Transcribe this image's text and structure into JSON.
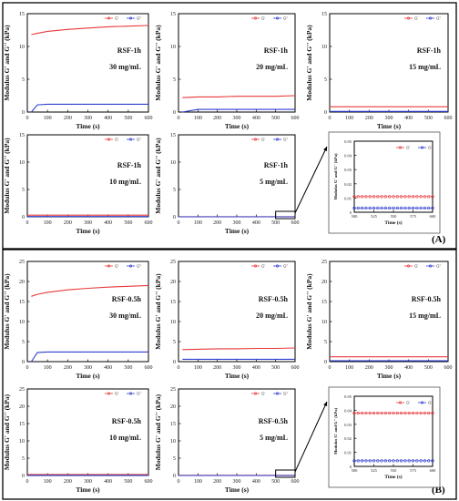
{
  "panel_labels": [
    "(A)",
    "(B)"
  ],
  "legend_labels": [
    "G'",
    "G''"
  ],
  "colors": {
    "g_prime": "#e8393a",
    "g_double_prime": "#2f3fcf",
    "frame": "#000000"
  },
  "chart_data": [
    {
      "type": "line",
      "group": "A",
      "sample": "RSF-1h",
      "concentration": "30 mg/mL",
      "xlabel": "Time (s)",
      "ylabel": "Modulus G' and G'' (kPa)",
      "xlim": [
        0,
        600
      ],
      "ylim": [
        0,
        15
      ],
      "xticks": [
        0,
        100,
        200,
        300,
        400,
        500,
        600
      ],
      "yticks": [
        0,
        5,
        10,
        15
      ],
      "x": [
        20,
        50,
        100,
        200,
        300,
        400,
        500,
        600
      ],
      "series": [
        {
          "name": "G'",
          "values": [
            11.8,
            12.0,
            12.3,
            12.6,
            12.8,
            13.0,
            13.1,
            13.2
          ]
        },
        {
          "name": "G''",
          "values": [
            0,
            1.1,
            1.2,
            1.2,
            1.2,
            1.2,
            1.2,
            1.2
          ]
        }
      ]
    },
    {
      "type": "line",
      "group": "A",
      "sample": "RSF-1h",
      "concentration": "20 mg/mL",
      "xlabel": "Time (s)",
      "ylabel": "Modulus G' and G'' (kPa)",
      "xlim": [
        0,
        600
      ],
      "ylim": [
        0,
        15
      ],
      "xticks": [
        0,
        100,
        200,
        300,
        400,
        500,
        600
      ],
      "yticks": [
        0,
        5,
        10,
        15
      ],
      "x": [
        20,
        100,
        200,
        300,
        400,
        500,
        600
      ],
      "series": [
        {
          "name": "G'",
          "values": [
            2.2,
            2.3,
            2.3,
            2.4,
            2.4,
            2.4,
            2.5
          ]
        },
        {
          "name": "G''",
          "values": [
            0,
            0.4,
            0.4,
            0.4,
            0.4,
            0.4,
            0.4
          ]
        }
      ]
    },
    {
      "type": "line",
      "group": "A",
      "sample": "RSF-1h",
      "concentration": "15 mg/mL",
      "xlabel": "Time (s)",
      "ylabel": "Modulus G' and G'' (kPa)",
      "xlim": [
        0,
        600
      ],
      "ylim": [
        0,
        15
      ],
      "xticks": [
        0,
        100,
        200,
        300,
        400,
        500,
        600
      ],
      "yticks": [
        0,
        5,
        10,
        15
      ],
      "x": [
        0,
        600
      ],
      "series": [
        {
          "name": "G'",
          "values": [
            0.8,
            0.8
          ]
        },
        {
          "name": "G''",
          "values": [
            0.1,
            0.1
          ]
        }
      ]
    },
    {
      "type": "line",
      "group": "A",
      "sample": "RSF-1h",
      "concentration": "10 mg/mL",
      "xlabel": "Time (s)",
      "ylabel": "Modulus G' and G'' (kPa)",
      "xlim": [
        0,
        600
      ],
      "ylim": [
        0,
        15
      ],
      "xticks": [
        0,
        100,
        200,
        300,
        400,
        500,
        600
      ],
      "yticks": [
        0,
        5,
        10,
        15
      ],
      "x": [
        0,
        600
      ],
      "series": [
        {
          "name": "G'",
          "values": [
            0.3,
            0.3
          ]
        },
        {
          "name": "G''",
          "values": [
            0.05,
            0.05
          ]
        }
      ]
    },
    {
      "type": "line",
      "group": "A",
      "sample": "RSF-1h",
      "concentration": "5 mg/mL",
      "xlabel": "Time (s)",
      "ylabel": "Modulus G' and G'' (kPa)",
      "xlim": [
        0,
        600
      ],
      "ylim": [
        0,
        15
      ],
      "xticks": [
        0,
        100,
        200,
        300,
        400,
        500,
        600
      ],
      "yticks": [
        0,
        5,
        10,
        15
      ],
      "x": [
        0,
        600
      ],
      "series": [
        {
          "name": "G'",
          "values": [
            0.01,
            0.01
          ]
        },
        {
          "name": "G''",
          "values": [
            0.003,
            0.003
          ]
        }
      ]
    },
    {
      "type": "scatter",
      "group": "A",
      "inset": true,
      "xlabel": "Time (s)",
      "ylabel": "Modulus G' and G'' (kPa)",
      "xlim": [
        500,
        600
      ],
      "ylim": [
        0,
        0.05
      ],
      "xticks": [
        500,
        525,
        550,
        575,
        600
      ],
      "yticks": [
        0,
        0.01,
        0.02,
        0.03,
        0.04,
        0.05
      ],
      "x": [
        500,
        505,
        510,
        515,
        520,
        525,
        530,
        535,
        540,
        545,
        550,
        555,
        560,
        565,
        570,
        575,
        580,
        585,
        590,
        595,
        600
      ],
      "series": [
        {
          "name": "G'",
          "values": [
            0.011,
            0.011,
            0.011,
            0.011,
            0.011,
            0.011,
            0.011,
            0.011,
            0.011,
            0.011,
            0.011,
            0.011,
            0.011,
            0.011,
            0.011,
            0.011,
            0.011,
            0.011,
            0.011,
            0.011,
            0.011
          ]
        },
        {
          "name": "G''",
          "values": [
            0.003,
            0.003,
            0.003,
            0.003,
            0.003,
            0.003,
            0.003,
            0.003,
            0.003,
            0.003,
            0.003,
            0.003,
            0.003,
            0.003,
            0.003,
            0.003,
            0.003,
            0.003,
            0.003,
            0.003,
            0.003
          ]
        }
      ]
    },
    {
      "type": "line",
      "group": "B",
      "sample": "RSF-0.5h",
      "concentration": "30 mg/mL",
      "xlabel": "Time (s)",
      "ylabel": "Modulus G' and G'' (kPa)",
      "xlim": [
        0,
        600
      ],
      "ylim": [
        0,
        25
      ],
      "xticks": [
        0,
        100,
        200,
        300,
        400,
        500,
        600
      ],
      "yticks": [
        0,
        5,
        10,
        15,
        20,
        25
      ],
      "x": [
        20,
        50,
        100,
        200,
        300,
        400,
        500,
        600
      ],
      "series": [
        {
          "name": "G'",
          "values": [
            16.3,
            16.8,
            17.3,
            17.9,
            18.3,
            18.6,
            18.8,
            19.0
          ]
        },
        {
          "name": "G''",
          "values": [
            0,
            2.3,
            2.4,
            2.4,
            2.4,
            2.4,
            2.4,
            2.4
          ]
        }
      ]
    },
    {
      "type": "line",
      "group": "B",
      "sample": "RSF-0.5h",
      "concentration": "20 mg/mL",
      "xlabel": "Time (s)",
      "ylabel": "Modulus G' and G'' (kPa)",
      "xlim": [
        0,
        600
      ],
      "ylim": [
        0,
        25
      ],
      "xticks": [
        0,
        100,
        200,
        300,
        400,
        500,
        600
      ],
      "yticks": [
        0,
        5,
        10,
        15,
        20,
        25
      ],
      "x": [
        20,
        100,
        200,
        300,
        400,
        500,
        600
      ],
      "series": [
        {
          "name": "G'",
          "values": [
            3.0,
            3.1,
            3.2,
            3.2,
            3.3,
            3.3,
            3.4
          ]
        },
        {
          "name": "G''",
          "values": [
            0.6,
            0.6,
            0.6,
            0.6,
            0.6,
            0.6,
            0.6
          ]
        }
      ]
    },
    {
      "type": "line",
      "group": "B",
      "sample": "RSF-0.5h",
      "concentration": "15 mg/mL",
      "xlabel": "Time (s)",
      "ylabel": "Modulus G' and G'' (kPa)",
      "xlim": [
        0,
        600
      ],
      "ylim": [
        0,
        25
      ],
      "xticks": [
        0,
        100,
        200,
        300,
        400,
        500,
        600
      ],
      "yticks": [
        0,
        5,
        10,
        15,
        20,
        25
      ],
      "x": [
        0,
        600
      ],
      "series": [
        {
          "name": "G'",
          "values": [
            1.2,
            1.2
          ]
        },
        {
          "name": "G''",
          "values": [
            0.2,
            0.2
          ]
        }
      ]
    },
    {
      "type": "line",
      "group": "B",
      "sample": "RSF-0.5h",
      "concentration": "10 mg/mL",
      "xlabel": "Time (s)",
      "ylabel": "Modulus G' and G'' (kPa)",
      "xlim": [
        0,
        600
      ],
      "ylim": [
        0,
        25
      ],
      "xticks": [
        0,
        100,
        200,
        300,
        400,
        500,
        600
      ],
      "yticks": [
        0,
        5,
        10,
        15,
        20,
        25
      ],
      "x": [
        0,
        600
      ],
      "series": [
        {
          "name": "G'",
          "values": [
            0.3,
            0.3
          ]
        },
        {
          "name": "G''",
          "values": [
            0.05,
            0.05
          ]
        }
      ]
    },
    {
      "type": "line",
      "group": "B",
      "sample": "RSF-0.5h",
      "concentration": "5 mg/mL",
      "xlabel": "Time (s)",
      "ylabel": "Modulus G' and G'' (kPa)",
      "xlim": [
        0,
        600
      ],
      "ylim": [
        0,
        25
      ],
      "xticks": [
        0,
        100,
        200,
        300,
        400,
        500,
        600
      ],
      "yticks": [
        0,
        5,
        10,
        15,
        20,
        25
      ],
      "x": [
        0,
        600
      ],
      "series": [
        {
          "name": "G'",
          "values": [
            0.04,
            0.04
          ]
        },
        {
          "name": "G''",
          "values": [
            0.005,
            0.005
          ]
        }
      ]
    },
    {
      "type": "scatter",
      "group": "B",
      "inset": true,
      "xlabel": "Time (s)",
      "ylabel": "Modulus G' and G'' (kPa)",
      "xlim": [
        500,
        600
      ],
      "ylim": [
        0,
        0.05
      ],
      "xticks": [
        500,
        525,
        550,
        575,
        600
      ],
      "yticks": [
        0,
        0.01,
        0.02,
        0.03,
        0.04,
        0.05
      ],
      "x": [
        500,
        505,
        510,
        515,
        520,
        525,
        530,
        535,
        540,
        545,
        550,
        555,
        560,
        565,
        570,
        575,
        580,
        585,
        590,
        595,
        600
      ],
      "series": [
        {
          "name": "G'",
          "values": [
            0.038,
            0.038,
            0.038,
            0.038,
            0.038,
            0.038,
            0.038,
            0.038,
            0.038,
            0.038,
            0.038,
            0.038,
            0.038,
            0.038,
            0.038,
            0.038,
            0.038,
            0.038,
            0.038,
            0.038,
            0.038
          ]
        },
        {
          "name": "G''",
          "values": [
            0.004,
            0.004,
            0.004,
            0.004,
            0.004,
            0.004,
            0.004,
            0.004,
            0.004,
            0.004,
            0.004,
            0.004,
            0.004,
            0.004,
            0.004,
            0.004,
            0.004,
            0.004,
            0.004,
            0.004,
            0.004
          ]
        }
      ]
    }
  ]
}
